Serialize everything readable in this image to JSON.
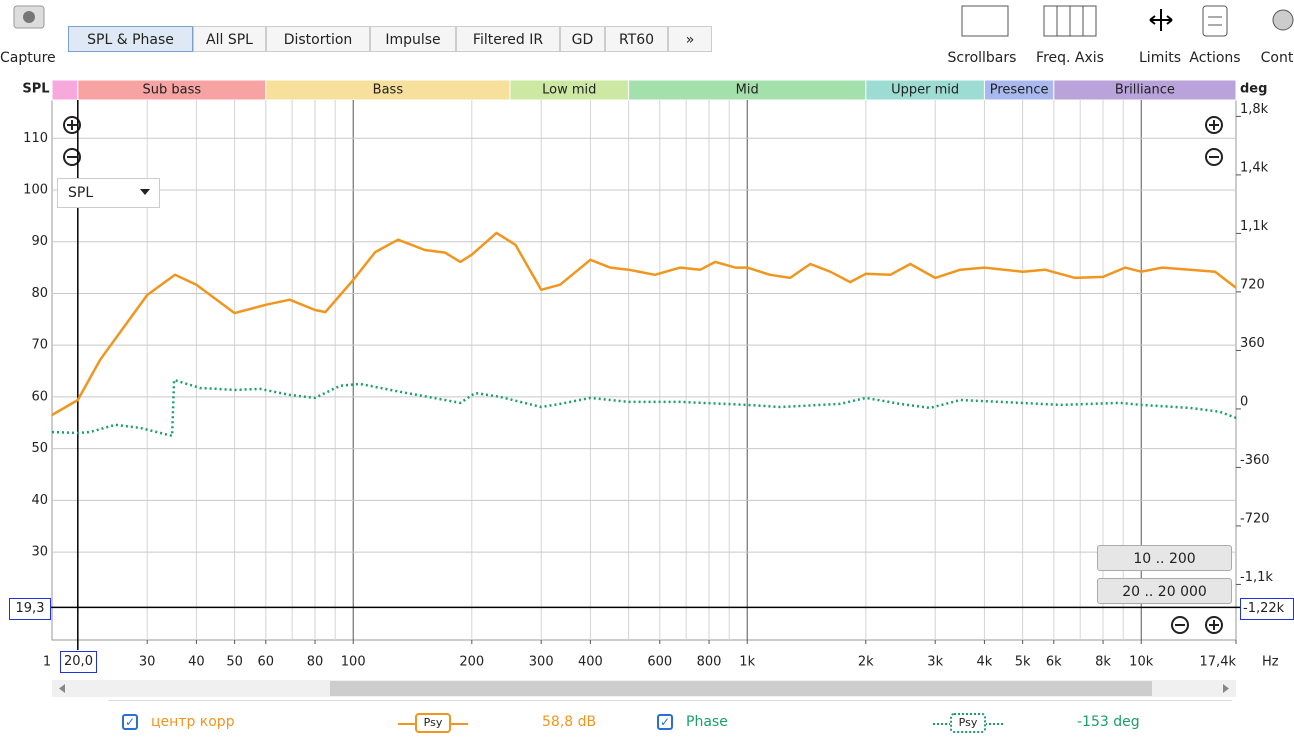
{
  "toolbar": {
    "capture": "Capture",
    "tabs": [
      "SPL & Phase",
      "All SPL",
      "Distortion",
      "Impulse",
      "Filtered IR",
      "GD",
      "RT60",
      "»"
    ],
    "tools": [
      "Scrollbars",
      "Freq. Axis",
      "Limits",
      "Actions",
      "Cont"
    ]
  },
  "bands": [
    {
      "label": null,
      "start": 17.2,
      "color": "#f7a8dc"
    },
    {
      "label": "Sub bass",
      "start": 20,
      "color": "#f7a3a3"
    },
    {
      "label": "Bass",
      "start": 60,
      "color": "#f7df9c"
    },
    {
      "label": "Low mid",
      "start": 250,
      "color": "#cde8a2"
    },
    {
      "label": "Mid",
      "start": 500,
      "color": "#a3e0ac"
    },
    {
      "label": "Upper mid",
      "start": 2000,
      "color": "#9cdcd3"
    },
    {
      "label": "Presence",
      "start": 4000,
      "color": "#a9b9ef"
    },
    {
      "label": "Brilliance",
      "start": 6000,
      "color": "#b9a3da"
    }
  ],
  "controls": {
    "dropdown": "SPL",
    "buttons": [
      "10 .. 200",
      "20 .. 20 000"
    ]
  },
  "chart_data": {
    "type": "line",
    "y_label": "SPL",
    "y2_label": "deg",
    "x_unit": "Hz",
    "x_edge_label": "1",
    "x_scale": "log",
    "xlim": [
      17.2,
      17400
    ],
    "ylim": [
      13,
      117.4
    ],
    "y2lim": [
      -1422,
      1901
    ],
    "xticks": [
      30,
      40,
      50,
      60,
      80,
      100,
      200,
      300,
      400,
      600,
      800,
      {
        "value": 1000,
        "label": "1k"
      },
      {
        "value": 2000,
        "label": "2k"
      },
      {
        "value": 3000,
        "label": "3k"
      },
      {
        "value": 4000,
        "label": "4k"
      },
      {
        "value": 5000,
        "label": "5k"
      },
      {
        "value": 6000,
        "label": "6k"
      },
      {
        "value": 8000,
        "label": "8k"
      },
      {
        "value": 10000,
        "label": "10k"
      },
      {
        "value": 17400,
        "label": "17,4k"
      }
    ],
    "xminor": [
      20,
      30,
      40,
      50,
      60,
      70,
      80,
      90,
      200,
      300,
      400,
      500,
      600,
      700,
      800,
      900,
      2000,
      3000,
      4000,
      5000,
      6000,
      7000,
      8000,
      9000
    ],
    "xmajor": [
      100,
      1000,
      10000
    ],
    "yticks": [
      30,
      40,
      50,
      60,
      70,
      80,
      90,
      100,
      110
    ],
    "y2ticks": [
      {
        "value": 1800,
        "label": "1,8k"
      },
      {
        "value": 1440,
        "label": "1,4k"
      },
      {
        "value": 1080,
        "label": "1,1k"
      },
      720,
      360,
      0,
      -360,
      -720,
      {
        "value": -1080,
        "label": "-1,1k"
      }
    ],
    "grid": true,
    "cursor": {
      "x": {
        "value": 20,
        "label": "20,0"
      },
      "y": {
        "value": 19.3,
        "label": "19,3"
      },
      "y2": {
        "value": -1220,
        "label": "-1,22k"
      }
    },
    "series": [
      {
        "name": "центр корр",
        "color": "#f0961e",
        "axis": "y",
        "style": "solid",
        "badge": "Psy",
        "readout": "58,8 dB",
        "x": [
          17.2,
          20,
          22.8,
          30,
          35.3,
          40,
          50,
          60,
          69,
          80,
          85,
          100,
          113.7,
          130,
          152,
          171,
          187,
          200,
          231,
          258,
          300,
          335,
          400,
          449,
          500,
          583,
          676,
          760,
          830,
          933,
          1000,
          1143,
          1285,
          1446,
          1625,
          1825,
          2000,
          2307,
          2594,
          3000,
          3475,
          4000,
          5000,
          5700,
          6800,
          8000,
          9100,
          10000,
          11300,
          13300,
          15400,
          17400
        ],
        "values": [
          56.5,
          59.4,
          67.2,
          79.7,
          83.6,
          81.7,
          76.2,
          77.8,
          78.8,
          76.8,
          76.4,
          82.6,
          88.0,
          90.4,
          88.4,
          87.9,
          86.1,
          87.5,
          91.7,
          89.4,
          80.7,
          81.7,
          86.5,
          85.0,
          84.6,
          83.6,
          85.0,
          84.6,
          86.1,
          85.0,
          85.0,
          83.6,
          83.0,
          85.7,
          84.2,
          82.2,
          83.8,
          83.6,
          85.7,
          83.0,
          84.6,
          85.0,
          84.2,
          84.6,
          83.0,
          83.2,
          85.0,
          84.2,
          85.0,
          84.6,
          84.2,
          81.1
        ]
      },
      {
        "name": "Phase",
        "color": "#1a9e6a",
        "axis": "y2",
        "style": "dotted",
        "badge": "Psy",
        "readout": "-153 deg",
        "x": [
          17.2,
          20,
          21.5,
          24.9,
          28.8,
          34.7,
          35.1,
          40.9,
          50,
          58,
          69,
          80,
          92.7,
          104,
          132,
          171,
          187,
          204,
          236,
          300,
          335,
          400,
          500,
          676,
          1000,
          1213,
          1722,
          2000,
          2444,
          2911,
          3475,
          4385,
          6225,
          8850,
          10000,
          13300,
          15850,
          17400
        ],
        "values": [
          -142,
          -148,
          -142,
          -98,
          -117,
          -166,
          178,
          129,
          117,
          123,
          86,
          68,
          142,
          154,
          105,
          55,
          37,
          98,
          74,
          12,
          31,
          68,
          43,
          43,
          25,
          12,
          31,
          68,
          31,
          6,
          55,
          43,
          25,
          37,
          25,
          6,
          -18,
          -55
        ]
      }
    ]
  }
}
